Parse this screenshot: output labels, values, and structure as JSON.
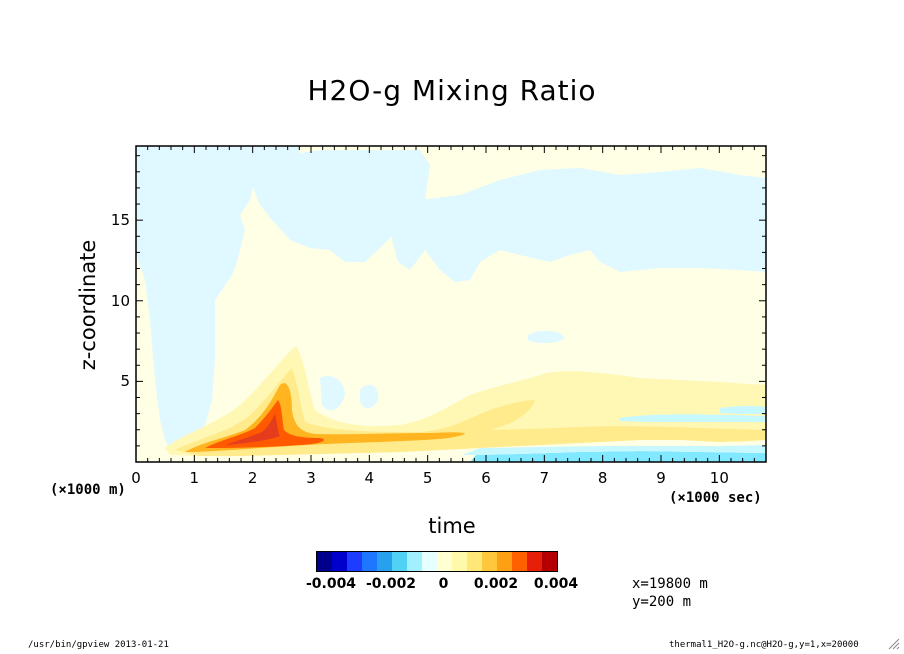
{
  "chart_data": {
    "type": "heatmap",
    "title": "H2O-g Mixing Ratio",
    "xlabel": "time",
    "ylabel": "z-coordinate",
    "x_unit_note": "(×1000 sec)",
    "y_unit_note": "(×1000 m)",
    "xlim": [
      0,
      10.8
    ],
    "ylim": [
      0,
      19.6
    ],
    "x_ticks": [
      "0",
      "1",
      "2",
      "3",
      "4",
      "5",
      "6",
      "7",
      "8",
      "9",
      "10"
    ],
    "y_ticks": [
      "5",
      "10",
      "15"
    ],
    "colorbar": {
      "ticks": [
        "-0.004",
        "-0.002",
        "0",
        "0.002",
        "0.004"
      ],
      "colors": [
        "#00008b",
        "#0000cd",
        "#1e3cff",
        "#1e78ff",
        "#28a0f0",
        "#50d2f5",
        "#a0f0ff",
        "#e6ffff",
        "#ffffd2",
        "#fffaaa",
        "#ffe878",
        "#ffc83c",
        "#ffa014",
        "#ff6000",
        "#e61e0a",
        "#b40000"
      ]
    },
    "field_regions": [
      {
        "level": "-0.0005",
        "shape": "upper-left blue tongue",
        "t": [
          0.1,
          2.6
        ],
        "z": [
          2.5,
          19.6
        ]
      },
      {
        "level": "-0.0005",
        "shape": "upper-right blue patches",
        "t": [
          4.0,
          10.8
        ],
        "z": [
          10.5,
          19.6
        ]
      },
      {
        "level": "-0.0005",
        "shape": "near-surface cyan band",
        "t": [
          5.9,
          10.8
        ],
        "z": [
          0,
          0.6
        ]
      },
      {
        "level": "0.0005",
        "shape": "lower yellow plume",
        "t": [
          0.6,
          10.8
        ],
        "z": [
          0.2,
          5.8
        ]
      },
      {
        "level": "0.0015",
        "shape": "orange core",
        "t": [
          1.1,
          5.8
        ],
        "z": [
          0.4,
          4.5
        ]
      },
      {
        "level": "0.0025",
        "shape": "red maximum",
        "t": [
          1.4,
          2.7
        ],
        "z": [
          0.6,
          2.2
        ]
      }
    ]
  },
  "coord_info": [
    "x=19800 m",
    "y=200 m"
  ],
  "footer": {
    "left": "/usr/bin/gpview  2013-01-21",
    "right": "thermal1_H2O-g.nc@H2O-g,y=1,x=20000"
  }
}
